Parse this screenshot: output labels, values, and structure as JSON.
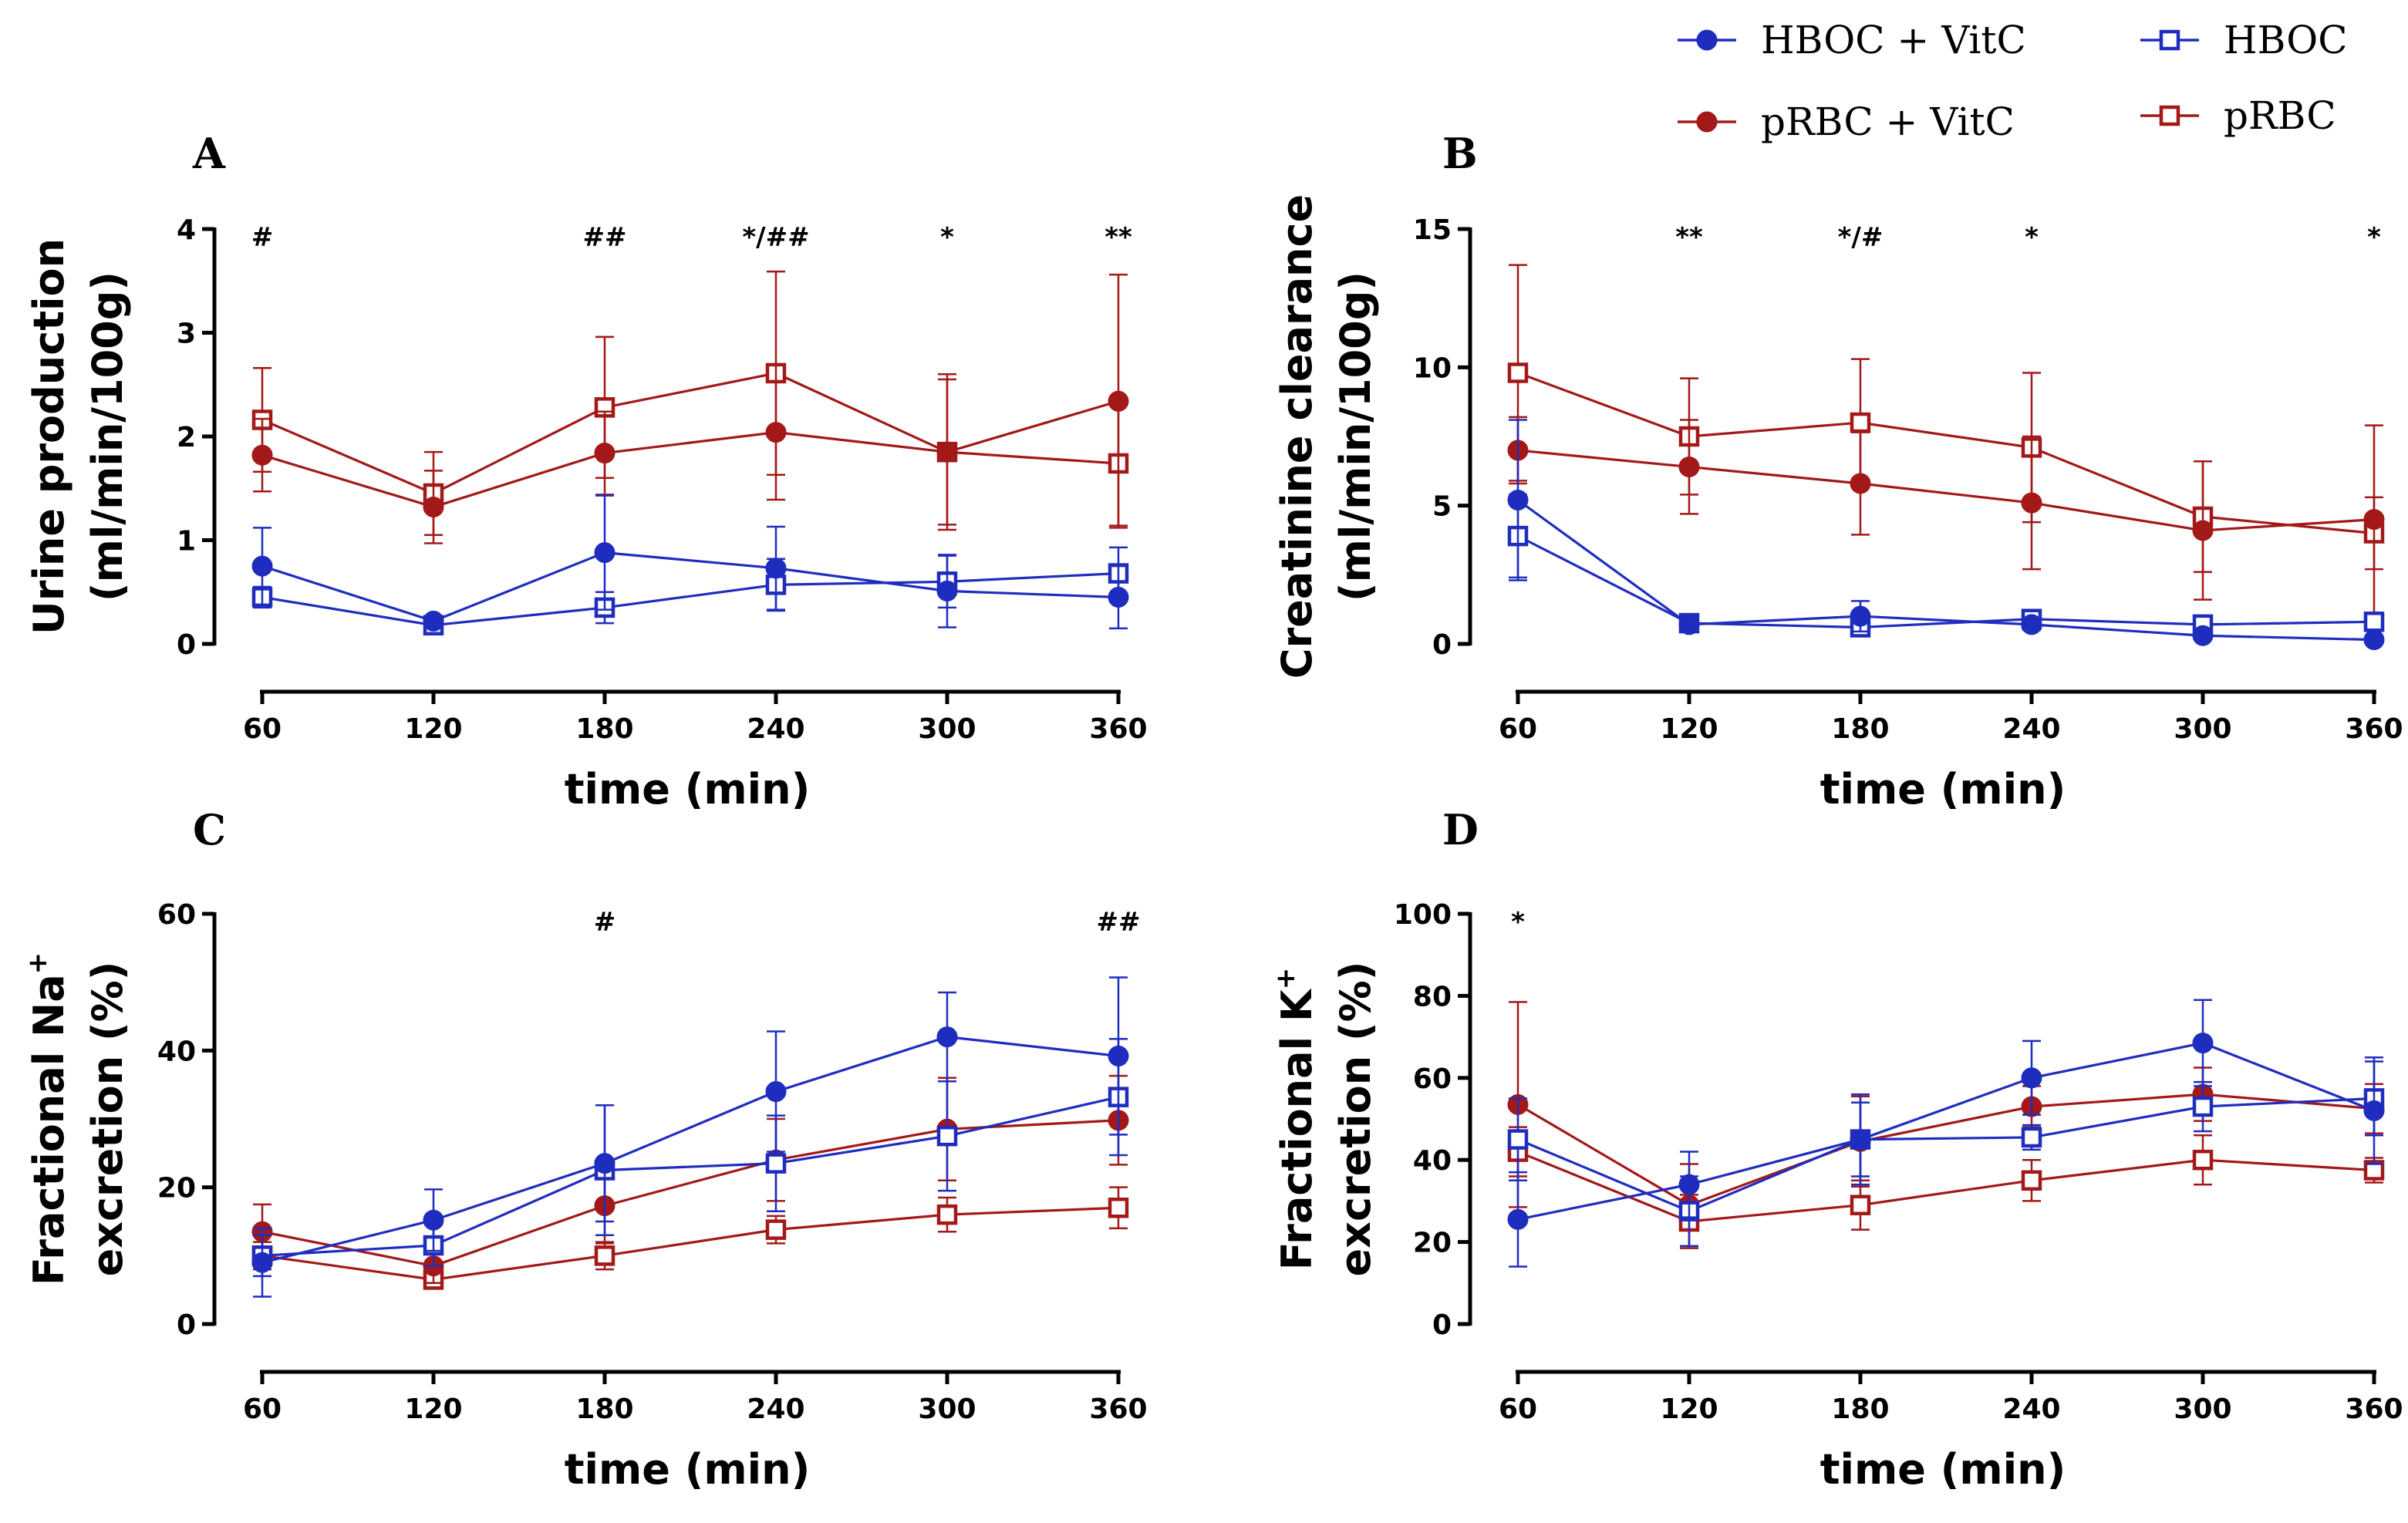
{
  "colors": {
    "blue": "#1f2dbf",
    "red": "#a31818",
    "axis": "#000000"
  },
  "legend": {
    "items": [
      {
        "label": "HBOC + VitC",
        "color": "#1f2dbf",
        "marker": "circle"
      },
      {
        "label": "HBOC",
        "color": "#1f2dbf",
        "marker": "square"
      },
      {
        "label": "pRBC + VitC",
        "color": "#a31818",
        "marker": "circle"
      },
      {
        "label": "pRBC",
        "color": "#a31818",
        "marker": "square"
      }
    ]
  },
  "chart_data": [
    {
      "panel": "A",
      "type": "line",
      "xlabel": "time (min)",
      "ylabel": [
        "Urine production",
        "(ml/min/100g)"
      ],
      "x": [
        60,
        120,
        180,
        240,
        300,
        360
      ],
      "xticks": [
        "60",
        "120",
        "180",
        "240",
        "300",
        "360"
      ],
      "ylim": [
        0,
        4
      ],
      "yticks": [
        "0",
        "1",
        "2",
        "3",
        "4"
      ],
      "annotations": [
        {
          "x": 60,
          "text": "#"
        },
        {
          "x": 180,
          "text": "##"
        },
        {
          "x": 240,
          "text": "*/##"
        },
        {
          "x": 300,
          "text": "*"
        },
        {
          "x": 360,
          "text": "**"
        }
      ],
      "series": [
        {
          "name": "HBOC + VitC",
          "values": [
            0.75,
            0.22,
            0.88,
            0.73,
            0.51,
            0.45
          ],
          "err": [
            0.37,
            0.05,
            0.55,
            0.4,
            0.35,
            0.3
          ]
        },
        {
          "name": "HBOC",
          "values": [
            0.45,
            0.18,
            0.35,
            0.57,
            0.6,
            0.68
          ],
          "err": [
            0.1,
            0.05,
            0.15,
            0.25,
            0.25,
            0.25
          ]
        },
        {
          "name": "pRBC + VitC",
          "values": [
            1.82,
            1.32,
            1.84,
            2.04,
            1.85,
            2.34
          ],
          "err": [
            0.35,
            0.35,
            0.4,
            0.65,
            0.7,
            1.22
          ]
        },
        {
          "name": "pRBC",
          "values": [
            2.16,
            1.45,
            2.28,
            2.61,
            1.85,
            1.74
          ],
          "err": [
            0.5,
            0.4,
            0.68,
            0.98,
            0.75,
            0.6
          ]
        }
      ]
    },
    {
      "panel": "B",
      "type": "line",
      "xlabel": "time (min)",
      "ylabel": [
        "Creatinine clearance",
        "(ml/min/100g)"
      ],
      "x": [
        60,
        120,
        180,
        240,
        300,
        360
      ],
      "xticks": [
        "60",
        "120",
        "180",
        "240",
        "300",
        "360"
      ],
      "ylim": [
        0,
        15
      ],
      "yticks": [
        "0",
        "5",
        "10",
        "15"
      ],
      "annotations": [
        {
          "x": 120,
          "text": "**"
        },
        {
          "x": 180,
          "text": "*/#"
        },
        {
          "x": 240,
          "text": "*"
        },
        {
          "x": 360,
          "text": "*"
        }
      ],
      "series": [
        {
          "name": "HBOC + VitC",
          "values": [
            5.2,
            0.7,
            1.0,
            0.7,
            0.3,
            0.15
          ],
          "err": [
            2.9,
            0.2,
            0.55,
            0.2,
            0.1,
            0.05
          ]
        },
        {
          "name": "HBOC",
          "values": [
            3.9,
            0.75,
            0.6,
            0.9,
            0.7,
            0.8
          ],
          "err": [
            1.5,
            0.2,
            0.25,
            0.25,
            0.2,
            0.2
          ]
        },
        {
          "name": "pRBC + VitC",
          "values": [
            7.0,
            6.4,
            5.8,
            5.1,
            4.1,
            4.5
          ],
          "err": [
            1.2,
            1.7,
            1.85,
            2.4,
            2.5,
            3.4
          ]
        },
        {
          "name": "pRBC",
          "values": [
            9.8,
            7.5,
            8.0,
            7.1,
            4.6,
            4.0
          ],
          "err": [
            3.9,
            2.1,
            2.3,
            2.7,
            2.0,
            1.3
          ]
        }
      ]
    },
    {
      "panel": "C",
      "type": "line",
      "xlabel": "time (min)",
      "ylabel": [
        "Fractional Na+",
        "excretion (%)"
      ],
      "x": [
        60,
        120,
        180,
        240,
        300,
        360
      ],
      "xticks": [
        "60",
        "120",
        "180",
        "240",
        "300",
        "360"
      ],
      "ylim": [
        0,
        60
      ],
      "yticks": [
        "0",
        "20",
        "40",
        "60"
      ],
      "annotations": [
        {
          "x": 180,
          "text": "#"
        },
        {
          "x": 360,
          "text": "##"
        }
      ],
      "series": [
        {
          "name": "HBOC + VitC",
          "values": [
            9.0,
            15.2,
            23.5,
            34.0,
            42.0,
            39.2
          ],
          "err": [
            5.0,
            4.5,
            8.5,
            8.8,
            6.5,
            11.5
          ]
        },
        {
          "name": "HBOC",
          "values": [
            10.0,
            11.5,
            22.5,
            23.5,
            27.5,
            33.2
          ],
          "err": [
            3.0,
            3.0,
            9.5,
            7.0,
            8.0,
            8.5
          ]
        },
        {
          "name": "pRBC + VitC",
          "values": [
            13.5,
            8.5,
            17.3,
            24.0,
            28.5,
            29.8
          ],
          "err": [
            4.0,
            2.5,
            5.5,
            6.0,
            7.5,
            6.5
          ]
        },
        {
          "name": "pRBC",
          "values": [
            10.0,
            6.5,
            10.0,
            13.8,
            16.0,
            17.0
          ],
          "err": [
            2.0,
            1.0,
            2.0,
            2.0,
            2.5,
            3.0
          ]
        }
      ]
    },
    {
      "panel": "D",
      "type": "line",
      "xlabel": "time (min)",
      "ylabel": [
        "Fractional K+",
        "excretion (%)"
      ],
      "x": [
        60,
        120,
        180,
        240,
        300,
        360
      ],
      "xticks": [
        "60",
        "120",
        "180",
        "240",
        "300",
        "360"
      ],
      "ylim": [
        0,
        100
      ],
      "yticks": [
        "0",
        "20",
        "40",
        "60",
        "80",
        "100"
      ],
      "annotations": [
        {
          "x": 60,
          "text": "*"
        }
      ],
      "series": [
        {
          "name": "HBOC + VitC",
          "values": [
            25.5,
            34.0,
            45.0,
            60.0,
            68.5,
            52.0
          ],
          "err": [
            11.5,
            8.0,
            11.0,
            9.0,
            10.5,
            13.0
          ]
        },
        {
          "name": "HBOC",
          "values": [
            45.0,
            27.5,
            45.0,
            45.5,
            53.0,
            55.0
          ],
          "err": [
            10.0,
            8.5,
            9.0,
            3.0,
            6.0,
            9.0
          ]
        },
        {
          "name": "pRBC + VitC",
          "values": [
            53.5,
            29.0,
            44.5,
            53.0,
            56.0,
            52.5
          ],
          "err": [
            25.0,
            10.0,
            11.0,
            5.0,
            6.5,
            6.0
          ]
        },
        {
          "name": "pRBC",
          "values": [
            42.0,
            25.0,
            29.0,
            35.0,
            40.0,
            37.5
          ],
          "err": [
            6.0,
            6.5,
            6.0,
            5.0,
            6.0,
            3.0
          ]
        }
      ]
    }
  ]
}
